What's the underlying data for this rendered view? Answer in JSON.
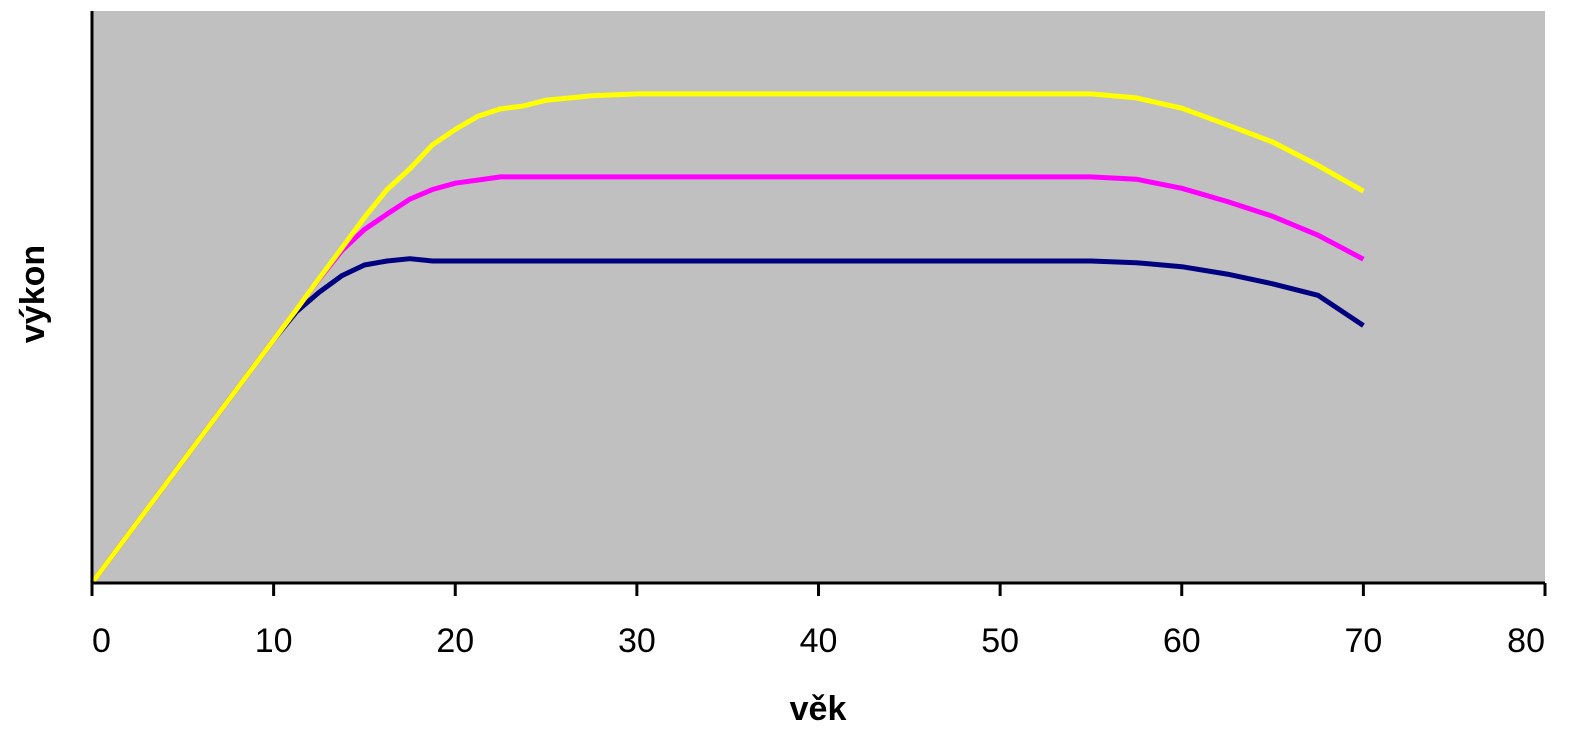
{
  "chart_data": {
    "type": "line",
    "title": "",
    "xlabel": "věk",
    "ylabel": "výkon",
    "xlim": [
      0,
      80
    ],
    "ylim": [
      0,
      100
    ],
    "x_ticks": [
      0,
      10,
      20,
      30,
      40,
      50,
      60,
      70,
      80
    ],
    "y_ticks_labeled": false,
    "grid": false,
    "legend": "none",
    "plot_background": "#c0c0c0",
    "series": [
      {
        "color": "#000080",
        "x": [
          0,
          5,
          10,
          11.25,
          12.5,
          13.75,
          15,
          16.25,
          17.5,
          18.75,
          20,
          25,
          30,
          35,
          40,
          45,
          50,
          55,
          57.5,
          60,
          62.5,
          65,
          67.5,
          70
        ],
        "y": [
          0,
          21.3,
          42.5,
          47.4,
          50.8,
          53.7,
          55.6,
          56.3,
          56.7,
          56.3,
          56.3,
          56.3,
          56.3,
          56.3,
          56.3,
          56.3,
          56.3,
          56.3,
          56.0,
          55.3,
          54.0,
          52.3,
          50.3,
          45.0
        ]
      },
      {
        "color": "#ff00ff",
        "x": [
          0,
          5,
          10,
          11.25,
          12.5,
          13.75,
          15,
          16.25,
          17.5,
          18.75,
          20,
          22.5,
          25,
          30,
          35,
          40,
          45,
          50,
          55,
          57.5,
          60,
          62.5,
          65,
          67.5,
          70
        ],
        "y": [
          0,
          21.3,
          42.5,
          47.8,
          53.1,
          58.1,
          61.8,
          64.5,
          67.1,
          68.8,
          69.9,
          71.0,
          71.0,
          71.0,
          71.0,
          71.0,
          71.0,
          71.0,
          71.0,
          70.6,
          69.0,
          66.7,
          64.1,
          60.8,
          56.6
        ]
      },
      {
        "color": "#ffff00",
        "x": [
          0,
          5,
          10,
          11.25,
          12.5,
          13.75,
          15,
          16.25,
          17.5,
          18.75,
          20,
          21.25,
          22.5,
          23.75,
          25,
          27.5,
          30,
          35,
          40,
          45,
          50,
          55,
          57.5,
          60,
          62.5,
          65,
          67.5,
          70
        ],
        "y": [
          0,
          21.3,
          42.5,
          47.8,
          53.2,
          58.5,
          63.9,
          68.8,
          72.4,
          76.6,
          79.3,
          81.6,
          82.9,
          83.4,
          84.4,
          85.2,
          85.5,
          85.5,
          85.5,
          85.5,
          85.5,
          85.5,
          84.8,
          83.0,
          80.1,
          77.1,
          73.0,
          68.5
        ]
      }
    ]
  }
}
